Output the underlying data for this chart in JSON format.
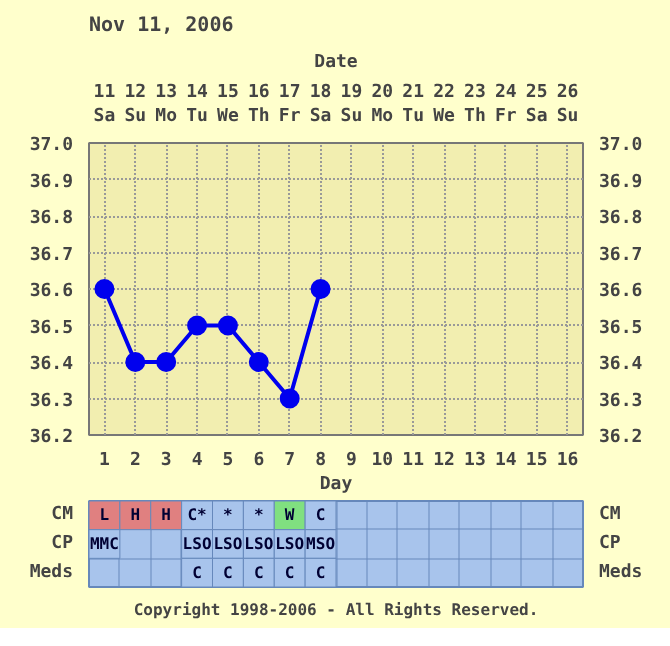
{
  "chart_data": [
    {
      "type": "line",
      "title": "Nov 11, 2006",
      "xlabel": "Day",
      "x2label": "Date",
      "x": [
        1,
        2,
        3,
        4,
        5,
        6,
        7,
        8
      ],
      "series": [
        {
          "color": "#0000ee",
          "values": [
            36.6,
            36.4,
            36.4,
            36.5,
            36.5,
            36.4,
            36.3,
            36.6
          ]
        }
      ],
      "xlim": [
        0.5,
        16.5
      ],
      "xticks": [
        1,
        2,
        3,
        4,
        5,
        6,
        7,
        8,
        9,
        10,
        11,
        12,
        13,
        14,
        15,
        16
      ],
      "x2lim": [
        "2006-11-10T12:00",
        "2006-11-26T12:00"
      ],
      "x2ticks": [
        {
          "value": "2006-11-11",
          "label": "11\nSa"
        },
        {
          "value": "2006-11-12",
          "label": "12\nSu"
        },
        {
          "value": "2006-11-13",
          "label": "13\nMo"
        },
        {
          "value": "2006-11-14",
          "label": "14\nTu"
        },
        {
          "value": "2006-11-15",
          "label": "15\nWe"
        },
        {
          "value": "2006-11-16",
          "label": "16\nTh"
        },
        {
          "value": "2006-11-17",
          "label": "17\nFr"
        },
        {
          "value": "2006-11-18",
          "label": "18\nSa"
        },
        {
          "value": "2006-11-19",
          "label": "19\nSu"
        },
        {
          "value": "2006-11-20",
          "label": "20\nMo"
        },
        {
          "value": "2006-11-21",
          "label": "21\nTu"
        },
        {
          "value": "2006-11-22",
          "label": "22\nWe"
        },
        {
          "value": "2006-11-23",
          "label": "23\nTh"
        },
        {
          "value": "2006-11-24",
          "label": "24\nFr"
        },
        {
          "value": "2006-11-25",
          "label": "25\nSa"
        },
        {
          "value": "2006-11-26",
          "label": "26\nSu"
        }
      ],
      "ylim": [
        36.2,
        37.0
      ],
      "yticks": [
        {
          "value": 36.2,
          "label": "36.2"
        },
        {
          "value": 36.3,
          "label": "36.3"
        },
        {
          "value": 36.4,
          "label": "36.4"
        },
        {
          "value": 36.5,
          "label": "36.5"
        },
        {
          "value": 36.6,
          "label": "36.6"
        },
        {
          "value": 36.7,
          "label": "36.7"
        },
        {
          "value": 36.8,
          "label": "36.8"
        },
        {
          "value": 36.9,
          "label": "36.9"
        },
        {
          "value": 37.0,
          "label": "37.0"
        }
      ],
      "y2lim": [
        36.2,
        37.0
      ],
      "y2ticks": [
        {
          "value": 36.2,
          "label": "36.2"
        },
        {
          "value": 36.3,
          "label": "36.3"
        },
        {
          "value": 36.4,
          "label": "36.4"
        },
        {
          "value": 36.5,
          "label": "36.5"
        },
        {
          "value": 36.6,
          "label": "36.6"
        },
        {
          "value": 36.7,
          "label": "36.7"
        },
        {
          "value": 36.8,
          "label": "36.8"
        },
        {
          "value": 36.9,
          "label": "36.9"
        },
        {
          "value": 37.0,
          "label": "37.0"
        }
      ],
      "grid": true,
      "marker": "circle",
      "line_style": "solid"
    },
    {
      "type": "heatmap",
      "categories": [
        null,
        null,
        null,
        null,
        null,
        null,
        null,
        null,
        null,
        null,
        null,
        null,
        null,
        null,
        null,
        null
      ],
      "y_categories": [
        "CM",
        "CP",
        "Meds"
      ],
      "y2_categories": [
        "CM",
        "CP",
        "Meds"
      ],
      "cells": [
        [
          null,
          null,
          null,
          null,
          null,
          null,
          null,
          null,
          null,
          null,
          null,
          null,
          null,
          null,
          null,
          null
        ],
        [
          null,
          null,
          null,
          null,
          null,
          null,
          null,
          null,
          null,
          null,
          null,
          null,
          null,
          null,
          null,
          null
        ],
        [
          null,
          null,
          null,
          null,
          null,
          null,
          null,
          null,
          null,
          null,
          null,
          null,
          null,
          null,
          null,
          null
        ]
      ],
      "cell_labels": [
        [
          "L",
          "H",
          "H",
          "C*",
          "*",
          "*",
          "W",
          "C",
          null,
          null,
          null,
          null,
          null,
          null,
          null,
          null
        ],
        [
          "MMC",
          null,
          null,
          "LSO",
          "LSO",
          "LSO",
          "LSO",
          "MSO",
          null,
          null,
          null,
          null,
          null,
          null,
          null,
          null
        ],
        [
          null,
          null,
          null,
          "C",
          "C",
          "C",
          "C",
          "C",
          null,
          null,
          null,
          null,
          null,
          null,
          null,
          null
        ]
      ],
      "colors": [
        [
          "#e08080",
          "#e08080",
          "#e08080",
          "#a8c4ec",
          "#a8c4ec",
          "#a8c4ec",
          "#80e080",
          "#a8c4ec",
          null,
          null,
          null,
          null,
          null,
          null,
          null,
          null
        ],
        [
          "#a8c4ec",
          null,
          null,
          "#a8c4ec",
          "#a8c4ec",
          "#a8c4ec",
          "#a8c4ec",
          "#a8c4ec",
          null,
          null,
          null,
          null,
          null,
          null,
          null,
          null
        ],
        [
          null,
          null,
          null,
          "#a8c4ec",
          "#a8c4ec",
          "#a8c4ec",
          "#a8c4ec",
          "#a8c4ec",
          null,
          null,
          null,
          null,
          null,
          null,
          null,
          null
        ]
      ],
      "annotations": [
        "Copyright 1998-2006 - All Rights Reserved."
      ]
    }
  ]
}
